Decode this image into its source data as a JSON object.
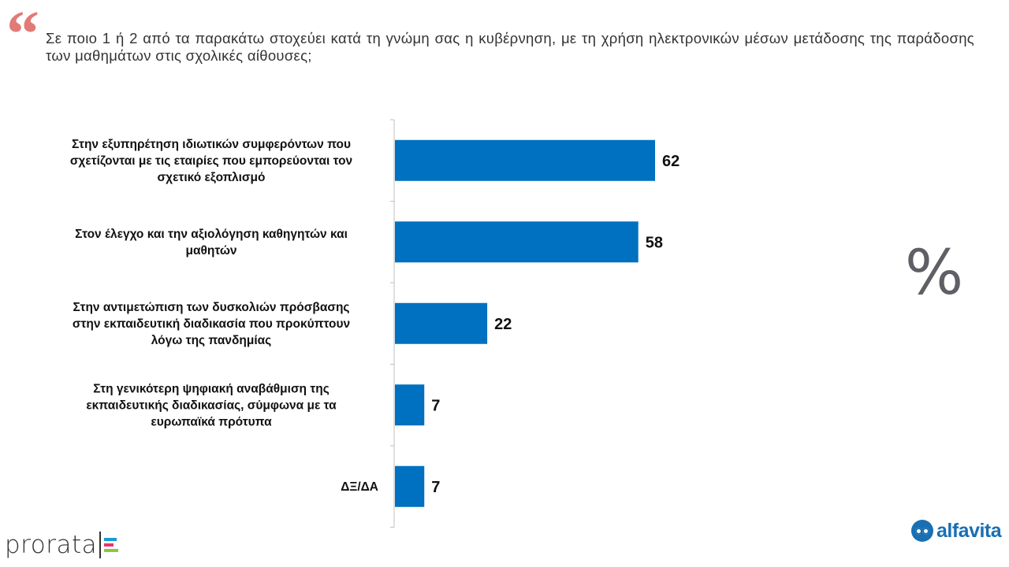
{
  "header": {
    "quote_glyph": "“",
    "question": "Σε ποιο 1 ή 2 από τα παρακάτω στοχεύει κατά τη γνώμη σας η κυβέρνηση, με τη χρήση ηλεκτρονικών μέσων μετάδοσης της παράδοσης των μαθημάτων στις σχολικές αίθουσες;"
  },
  "unit_symbol": "%",
  "colors": {
    "bar": "#0070c0",
    "quote": "#e07b78",
    "alfavita": "#1a6fb3"
  },
  "chart_data": {
    "type": "bar",
    "orientation": "horizontal",
    "title": "",
    "xlabel": "",
    "ylabel": "",
    "xlim": [
      0,
      100
    ],
    "categories": [
      [
        "Στην εξυπηρέτηση ιδιωτικών συμφερόντων που",
        "σχετίζονται με τις εταιρίες που εμπορεύονται τον",
        "σχετικό εξοπλισμό"
      ],
      [
        "Στον έλεγχο και την αξιολόγηση καθηγητών και",
        "μαθητών"
      ],
      [
        "Στην αντιμετώπιση των δυσκολιών πρόσβασης",
        "στην εκπαιδευτική διαδικασία που προκύπτουν",
        "λόγω της πανδημίας"
      ],
      [
        "Στη γενικότερη ψηφιακή αναβάθμιση της",
        "εκπαιδευτικής διαδικασίας, σύμφωνα με τα",
        "ευρωπαϊκά πρότυπα"
      ],
      [
        "ΔΞ/ΔΑ"
      ]
    ],
    "values": [
      62,
      58,
      22,
      7,
      7
    ]
  },
  "logos": {
    "prorata": "prorata",
    "alfavita": "alfavita",
    "prorata_colors": [
      "#1a9ad6",
      "#e8336e",
      "#8cc63f"
    ]
  }
}
